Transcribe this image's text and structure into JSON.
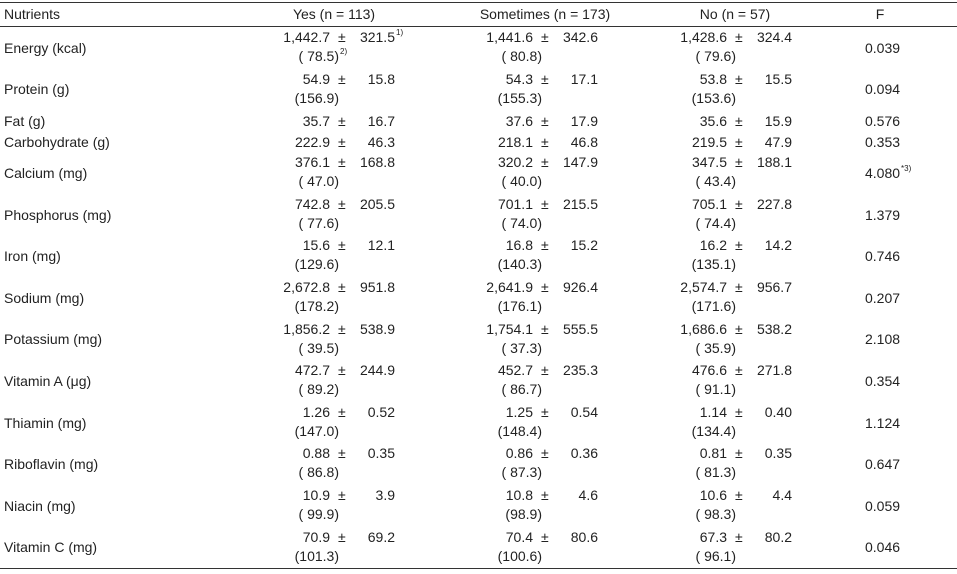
{
  "pm": "±",
  "table": {
    "header": [
      "Nutrients",
      "Yes (n = 113)",
      "Sometimes (n = 173)",
      "No (n = 57)",
      "F"
    ],
    "rows": [
      {
        "nutrient": "Energy (kcal)",
        "groups": [
          [
            "1,442.7",
            "321.5",
            "( 78.5)"
          ],
          [
            "1,441.6",
            "342.6",
            "( 80.8)"
          ],
          [
            "1,428.6",
            "324.4",
            "( 79.6)"
          ]
        ],
        "f": "0.039",
        "sd_note": "1)",
        "pct_note": "2)"
      },
      {
        "nutrient": "Protein (g)",
        "groups": [
          [
            "54.9",
            "15.8",
            "(156.9)"
          ],
          [
            "54.3",
            "17.1",
            "(155.3)"
          ],
          [
            "53.8",
            "15.5",
            "(153.6)"
          ]
        ],
        "f": "0.094"
      },
      {
        "nutrient": "Fat (g)",
        "groups": [
          [
            "35.7",
            "16.7"
          ],
          [
            "37.6",
            "17.9"
          ],
          [
            "35.6",
            "15.9"
          ]
        ],
        "f": "0.576"
      },
      {
        "nutrient": "Carbohydrate (g)",
        "groups": [
          [
            "222.9",
            "46.3"
          ],
          [
            "218.1",
            "46.8"
          ],
          [
            "219.5",
            "47.9"
          ]
        ],
        "f": "0.353"
      },
      {
        "nutrient": "Calcium (mg)",
        "groups": [
          [
            "376.1",
            "168.8",
            "( 47.0)"
          ],
          [
            "320.2",
            "147.9",
            "( 40.0)"
          ],
          [
            "347.5",
            "188.1",
            "( 43.4)"
          ]
        ],
        "f": "4.080",
        "f_note": "*3)"
      },
      {
        "nutrient": "Phosphorus (mg)",
        "groups": [
          [
            "742.8",
            "205.5",
            "( 77.6)"
          ],
          [
            "701.1",
            "215.5",
            "( 74.0)"
          ],
          [
            "705.1",
            "227.8",
            "( 74.4)"
          ]
        ],
        "f": "1.379"
      },
      {
        "nutrient": "Iron (mg)",
        "groups": [
          [
            "15.6",
            "12.1",
            "(129.6)"
          ],
          [
            "16.8",
            "15.2",
            "(140.3)"
          ],
          [
            "16.2",
            "14.2",
            "(135.1)"
          ]
        ],
        "f": "0.746"
      },
      {
        "nutrient": "Sodium (mg)",
        "groups": [
          [
            "2,672.8",
            "951.8",
            "(178.2)"
          ],
          [
            "2,641.9",
            "926.4",
            "(176.1)"
          ],
          [
            "2,574.7",
            "956.7",
            "(171.6)"
          ]
        ],
        "f": "0.207"
      },
      {
        "nutrient": "Potassium (mg)",
        "groups": [
          [
            "1,856.2",
            "538.9",
            "( 39.5)"
          ],
          [
            "1,754.1",
            "555.5",
            "( 37.3)"
          ],
          [
            "1,686.6",
            "538.2",
            "( 35.9)"
          ]
        ],
        "f": "2.108"
      },
      {
        "nutrient": "Vitamin A (μg)",
        "groups": [
          [
            "472.7",
            "244.9",
            "( 89.2)"
          ],
          [
            "452.7",
            "235.3",
            "( 86.7)"
          ],
          [
            "476.6",
            "271.8",
            "( 91.1)"
          ]
        ],
        "f": "0.354"
      },
      {
        "nutrient": "Thiamin (mg)",
        "groups": [
          [
            "1.26",
            "0.52",
            "(147.0)"
          ],
          [
            "1.25",
            "0.54",
            "(148.4)"
          ],
          [
            "1.14",
            "0.40",
            "(134.4)"
          ]
        ],
        "f": "1.124"
      },
      {
        "nutrient": "Riboflavin (mg)",
        "groups": [
          [
            "0.88",
            "0.35",
            "( 86.8)"
          ],
          [
            "0.86",
            "0.36",
            "( 87.3)"
          ],
          [
            "0.81",
            "0.35",
            "( 81.3)"
          ]
        ],
        "f": "0.647"
      },
      {
        "nutrient": "Niacin (mg)",
        "groups": [
          [
            "10.9",
            "3.9",
            "( 99.9)"
          ],
          [
            "10.8",
            "4.6",
            "(98.9)"
          ],
          [
            "10.6",
            "4.4",
            "( 98.3)"
          ]
        ],
        "f": "0.059"
      },
      {
        "nutrient": "Vitamin C (mg)",
        "groups": [
          [
            "70.9",
            "69.2",
            "(101.3)"
          ],
          [
            "70.4",
            "80.6",
            "(100.6)"
          ],
          [
            "67.3",
            "80.2",
            "( 96.1)"
          ]
        ],
        "f": "0.046"
      }
    ]
  }
}
